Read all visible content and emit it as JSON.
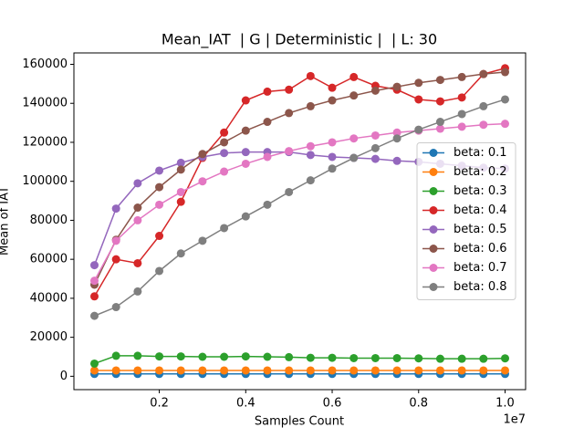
{
  "chart_data": {
    "type": "line",
    "title": "Mean_IAT  | G | Deterministic |  | L: 30",
    "xlabel": "Samples Count",
    "ylabel": "Mean of IAT",
    "x_offset_label": "1e7",
    "x": [
      500000,
      1000000,
      1500000,
      2000000,
      2500000,
      3000000,
      3500000,
      4000000,
      4500000,
      5000000,
      5500000,
      6000000,
      6500000,
      7000000,
      7500000,
      8000000,
      8500000,
      9000000,
      9500000,
      10000000
    ],
    "series": [
      {
        "name": "beta: 0.1",
        "color": "#1f77b4",
        "values": [
          1200,
          1200,
          1200,
          1200,
          1200,
          1200,
          1200,
          1200,
          1200,
          1200,
          1200,
          1200,
          1200,
          1200,
          1200,
          1200,
          1200,
          1200,
          1200,
          1200
        ]
      },
      {
        "name": "beta: 0.2",
        "color": "#ff7f0e",
        "values": [
          3000,
          3000,
          3000,
          3000,
          3000,
          3000,
          3000,
          3000,
          3000,
          3000,
          3000,
          3000,
          3000,
          3000,
          3000,
          3000,
          3000,
          3000,
          3000,
          3000
        ]
      },
      {
        "name": "beta: 0.3",
        "color": "#2ca02c",
        "values": [
          6500,
          10500,
          10500,
          10200,
          10200,
          10000,
          10000,
          10200,
          10000,
          9800,
          9500,
          9500,
          9300,
          9300,
          9300,
          9200,
          9000,
          9000,
          9000,
          9200
        ]
      },
      {
        "name": "beta: 0.4",
        "color": "#d62728",
        "values": [
          41000,
          60000,
          58000,
          72000,
          89500,
          112000,
          125000,
          141500,
          146000,
          147000,
          154000,
          148000,
          153500,
          149000,
          147000,
          142000,
          141000,
          143000,
          155000,
          158000
        ]
      },
      {
        "name": "beta: 0.5",
        "color": "#9467bd",
        "values": [
          57000,
          86000,
          99000,
          105500,
          109500,
          112500,
          114500,
          115000,
          115000,
          115000,
          113500,
          112500,
          112000,
          111500,
          110500,
          110000,
          109000,
          108000,
          107000,
          106500
        ]
      },
      {
        "name": "beta: 0.6",
        "color": "#8c564b",
        "values": [
          47000,
          70000,
          86500,
          97000,
          106000,
          114000,
          120000,
          126000,
          130500,
          135000,
          138500,
          141500,
          144000,
          146500,
          148500,
          150500,
          152000,
          153500,
          155000,
          156000
        ]
      },
      {
        "name": "beta: 0.7",
        "color": "#e377c2",
        "values": [
          49000,
          69500,
          80000,
          88000,
          94500,
          100000,
          105000,
          109000,
          112500,
          115500,
          118000,
          120000,
          122000,
          123500,
          125000,
          126000,
          127000,
          128000,
          129000,
          129500
        ]
      },
      {
        "name": "beta: 0.8",
        "color": "#7f7f7f",
        "values": [
          31000,
          35500,
          43500,
          54000,
          63000,
          69500,
          76000,
          82000,
          88000,
          94500,
          100500,
          106500,
          112000,
          117000,
          122000,
          126500,
          130500,
          134500,
          138500,
          142000
        ]
      }
    ],
    "xlim": [
      25000,
      10475000
    ],
    "ylim": [
      -6850,
      165850
    ],
    "xticks": [
      {
        "value": 2000000,
        "label": "0.2"
      },
      {
        "value": 4000000,
        "label": "0.4"
      },
      {
        "value": 6000000,
        "label": "0.6"
      },
      {
        "value": 8000000,
        "label": "0.8"
      },
      {
        "value": 10000000,
        "label": "1.0"
      }
    ],
    "yticks": [
      0,
      20000,
      40000,
      60000,
      80000,
      100000,
      120000,
      140000,
      160000
    ],
    "legend": "center right",
    "grid": false
  }
}
